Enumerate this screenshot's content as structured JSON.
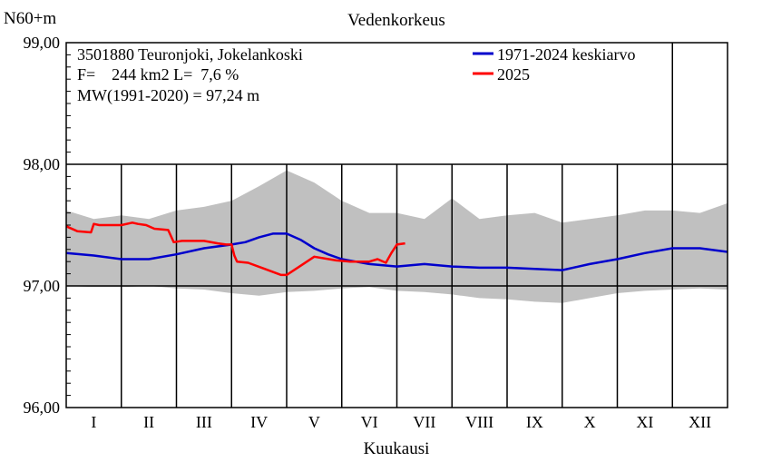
{
  "chart_data": {
    "type": "line",
    "title": "Vedenkorkeus",
    "ylabel": "N60+m",
    "xlabel": "Kuukausi",
    "ylim": [
      96.0,
      99.0
    ],
    "y_ticks": [
      "96,00",
      "97,00",
      "98,00",
      "99,00"
    ],
    "xlim_months": [
      0,
      12
    ],
    "months": [
      "I",
      "II",
      "III",
      "IV",
      "V",
      "VI",
      "VII",
      "VIII",
      "IX",
      "X",
      "XI",
      "XII"
    ],
    "grid": true,
    "legend_position": "top-right",
    "info_lines": [
      "3501880 Teuronjoki, Jokelankoski",
      "F=    244 km2 L=  7,6 %",
      "MW(1991-2020) = 97,24 m"
    ],
    "colors": {
      "mean": "#0000cc",
      "current": "#ff0000",
      "band": "#c0c0c0"
    },
    "band": {
      "name": "",
      "x": [
        0,
        0.5,
        1,
        1.5,
        2,
        2.5,
        3,
        3.5,
        4,
        4.5,
        5,
        5.5,
        6,
        6.5,
        7,
        7.5,
        8,
        8.5,
        9,
        9.5,
        10,
        10.5,
        11,
        11.5,
        12
      ],
      "upper": [
        97.62,
        97.55,
        97.58,
        97.55,
        97.62,
        97.65,
        97.7,
        97.82,
        97.95,
        97.85,
        97.7,
        97.6,
        97.6,
        97.55,
        97.72,
        97.55,
        97.58,
        97.6,
        97.52,
        97.55,
        97.58,
        97.62,
        97.62,
        97.6,
        97.68
      ],
      "lower": [
        97.0,
        96.99,
        96.99,
        97.0,
        96.98,
        96.97,
        96.94,
        96.92,
        96.95,
        96.96,
        96.98,
        96.99,
        96.96,
        96.95,
        96.93,
        96.9,
        96.89,
        96.87,
        96.86,
        96.9,
        96.94,
        96.96,
        96.97,
        96.98,
        96.97
      ]
    },
    "series": [
      {
        "name": "1971-2024 keskiarvo",
        "x": [
          0,
          0.5,
          1,
          1.5,
          2,
          2.5,
          3,
          3.25,
          3.5,
          3.75,
          4,
          4.25,
          4.5,
          4.75,
          5,
          5.25,
          5.5,
          6,
          6.5,
          7,
          7.5,
          8,
          8.5,
          9,
          9.5,
          10,
          10.5,
          11,
          11.5,
          12
        ],
        "y": [
          97.27,
          97.25,
          97.22,
          97.22,
          97.26,
          97.31,
          97.34,
          97.36,
          97.4,
          97.43,
          97.43,
          97.38,
          97.31,
          97.26,
          97.22,
          97.2,
          97.18,
          97.16,
          97.18,
          97.16,
          97.15,
          97.15,
          97.14,
          97.13,
          97.18,
          97.22,
          97.27,
          97.31,
          97.31,
          97.28
        ]
      },
      {
        "name": "2025",
        "x": [
          0,
          0.2,
          0.45,
          0.5,
          0.6,
          1,
          1.2,
          1.3,
          1.45,
          1.6,
          1.85,
          1.95,
          2.1,
          2.5,
          2.75,
          2.9,
          3.0,
          3.05,
          3.1,
          3.3,
          3.6,
          3.9,
          4.0,
          4.3,
          4.5,
          4.9,
          5.15,
          5.5,
          5.65,
          5.8,
          5.9,
          6.0,
          6.15
        ],
        "y": [
          97.49,
          97.45,
          97.44,
          97.51,
          97.5,
          97.5,
          97.52,
          97.51,
          97.5,
          97.47,
          97.46,
          97.36,
          97.37,
          97.37,
          97.35,
          97.34,
          97.34,
          97.25,
          97.2,
          97.19,
          97.14,
          97.09,
          97.09,
          97.18,
          97.24,
          97.21,
          97.2,
          97.2,
          97.22,
          97.19,
          97.27,
          97.34,
          97.35
        ]
      }
    ]
  }
}
